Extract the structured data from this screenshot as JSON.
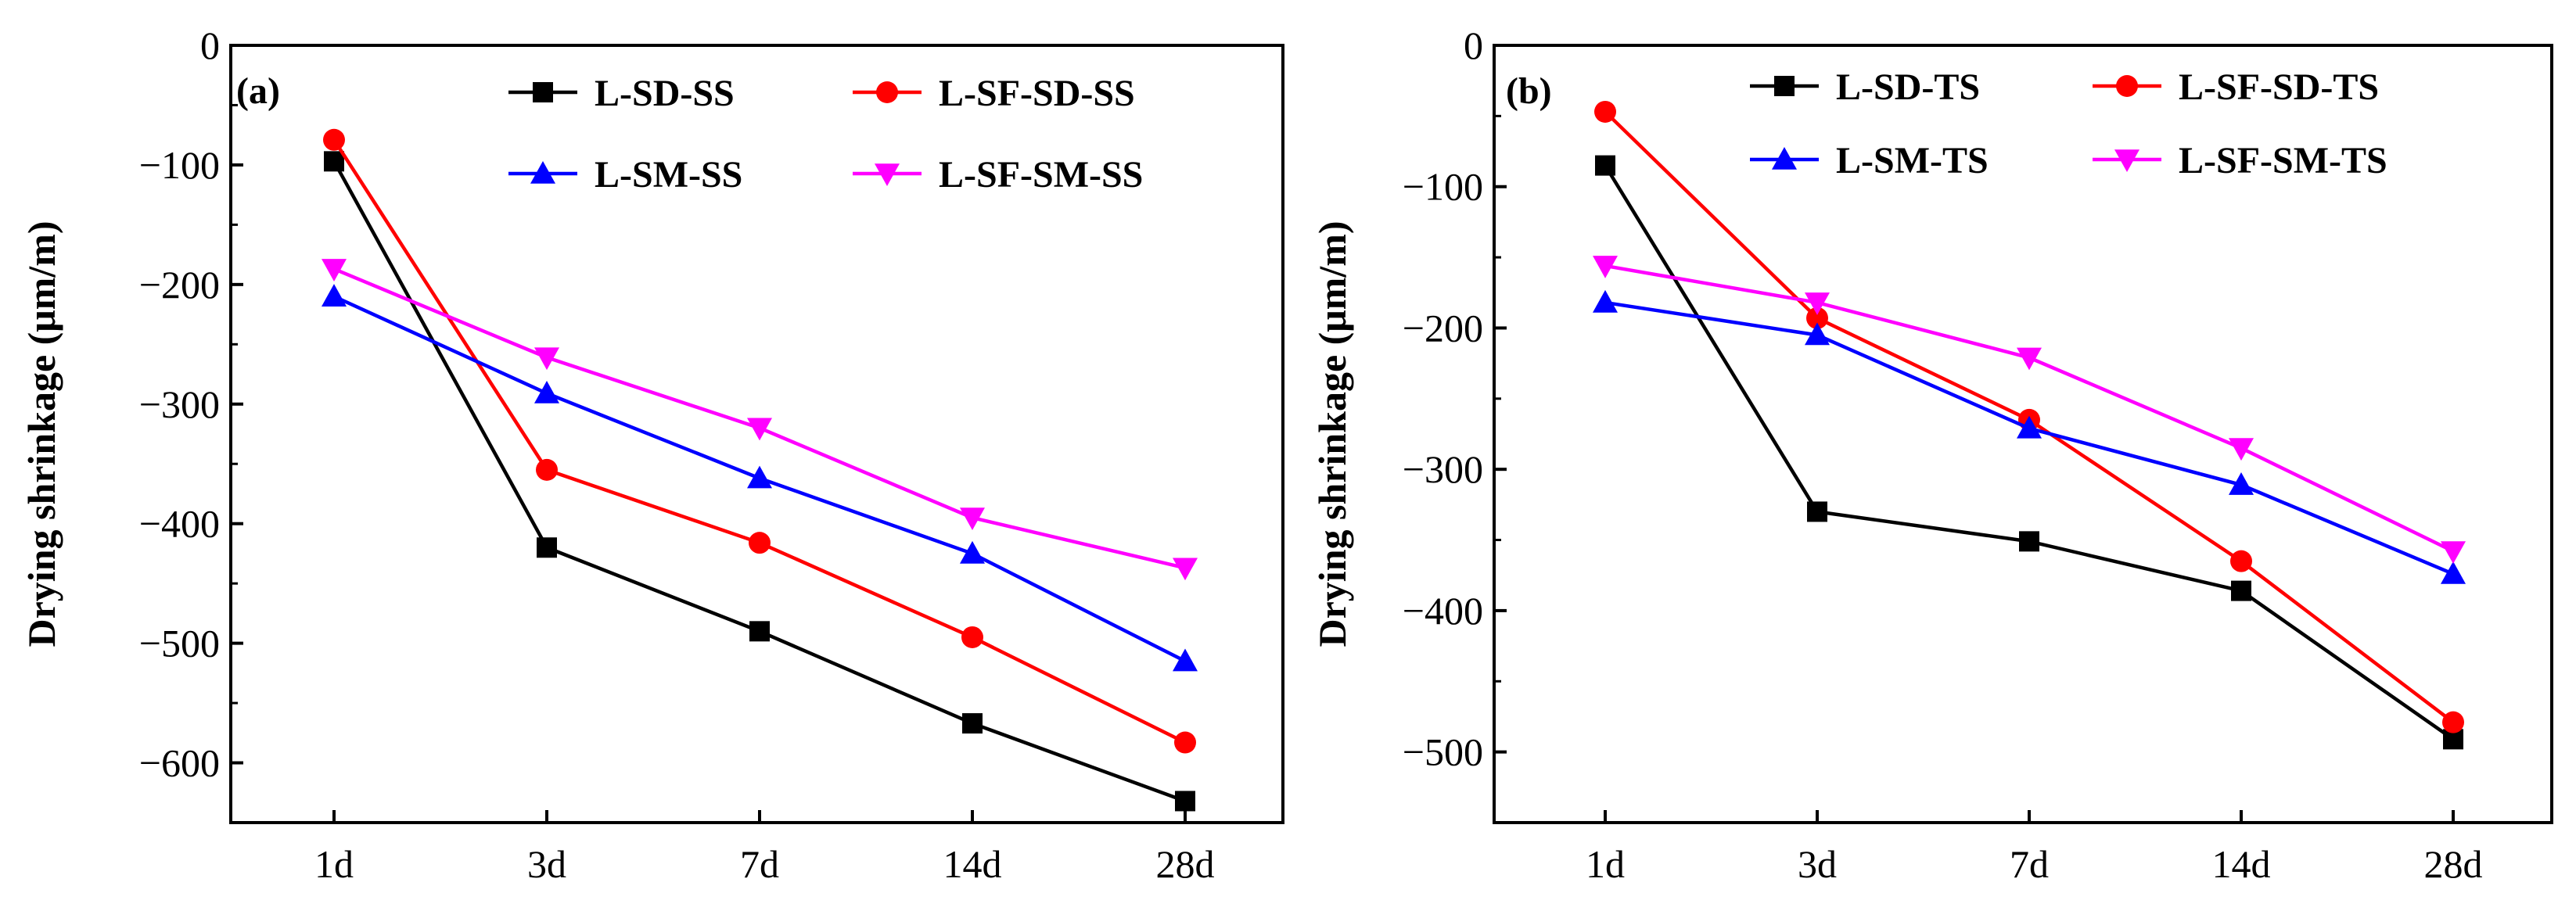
{
  "chart_data": [
    {
      "type": "line",
      "panel_label": "(a)",
      "categories": [
        "1d",
        "3d",
        "7d",
        "14d",
        "28d"
      ],
      "ylabel": "Drying shrinkage (μm/m)",
      "ylim": [
        -650,
        0
      ],
      "yticks": [
        0,
        -100,
        -200,
        -300,
        -400,
        -500,
        -600
      ],
      "ytick_labels": [
        "0",
        "−100",
        "−200",
        "−300",
        "−400",
        "−500",
        "−600"
      ],
      "legend_position": "top-right",
      "series": [
        {
          "name": "L-SD-SS",
          "color": "#000000",
          "marker": "square",
          "values": [
            -97,
            -420,
            -490,
            -567,
            -632
          ]
        },
        {
          "name": "L-SF-SD-SS",
          "color": "#ff0000",
          "marker": "circle",
          "values": [
            -79,
            -355,
            -416,
            -495,
            -583
          ]
        },
        {
          "name": "L-SM-SS",
          "color": "#0000ff",
          "marker": "triangle-up",
          "values": [
            -210,
            -291,
            -362,
            -425,
            -515
          ]
        },
        {
          "name": "L-SF-SM-SS",
          "color": "#ff00ff",
          "marker": "triangle-down",
          "values": [
            -187,
            -261,
            -320,
            -395,
            -437
          ]
        }
      ]
    },
    {
      "type": "line",
      "panel_label": "(b)",
      "categories": [
        "1d",
        "3d",
        "7d",
        "14d",
        "28d"
      ],
      "ylabel": "Drying shrinkage (μm/m)",
      "ylim": [
        -550,
        0
      ],
      "yticks": [
        0,
        -100,
        -200,
        -300,
        -400,
        -500
      ],
      "ytick_labels": [
        "0",
        "−100",
        "−200",
        "−300",
        "−400",
        "−500"
      ],
      "legend_position": "top-right",
      "series": [
        {
          "name": "L-SD-TS",
          "color": "#000000",
          "marker": "square",
          "values": [
            -85,
            -330,
            -351,
            -386,
            -491
          ]
        },
        {
          "name": "L-SF-SD-TS",
          "color": "#ff0000",
          "marker": "circle",
          "values": [
            -47,
            -193,
            -265,
            -365,
            -479
          ]
        },
        {
          "name": "L-SM-TS",
          "color": "#0000ff",
          "marker": "triangle-up",
          "values": [
            -182,
            -205,
            -271,
            -311,
            -374
          ]
        },
        {
          "name": "L-SF-SM-TS",
          "color": "#ff00ff",
          "marker": "triangle-down",
          "values": [
            -156,
            -182,
            -221,
            -285,
            -358
          ]
        }
      ]
    }
  ]
}
